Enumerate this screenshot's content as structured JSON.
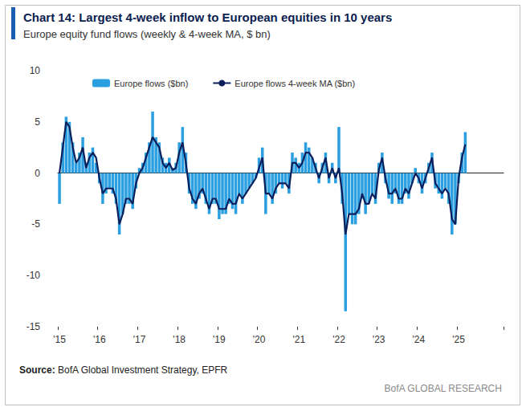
{
  "chart_data": {
    "type": "bar",
    "title": "Chart 14: Largest 4-week inflow to European equities in 10 years",
    "subtitle": "Europe equity fund flows (weekly & 4-week MA, $ bn)",
    "source": "Source: BofA Global Investment Strategy, EPFR",
    "credit": "BofA GLOBAL RESEARCH",
    "categories": [
      "'15",
      null,
      null,
      null,
      null,
      null,
      null,
      null,
      null,
      null,
      null,
      null,
      "'16",
      null,
      null,
      null,
      null,
      null,
      null,
      null,
      null,
      null,
      null,
      null,
      "'17",
      null,
      null,
      null,
      null,
      null,
      null,
      null,
      null,
      null,
      null,
      null,
      "'18",
      null,
      null,
      null,
      null,
      null,
      null,
      null,
      null,
      null,
      null,
      null,
      "'19",
      null,
      null,
      null,
      null,
      null,
      null,
      null,
      null,
      null,
      null,
      null,
      "'20",
      null,
      null,
      null,
      null,
      null,
      null,
      null,
      null,
      null,
      null,
      null,
      "'21",
      null,
      null,
      null,
      null,
      null,
      null,
      null,
      null,
      null,
      null,
      null,
      "'22",
      null,
      null,
      null,
      null,
      null,
      null,
      null,
      null,
      null,
      null,
      null,
      "'23",
      null,
      null,
      null,
      null,
      null,
      null,
      null,
      null,
      null,
      null,
      null,
      "'24",
      null,
      null,
      null,
      null,
      null,
      null,
      null,
      null,
      null,
      null,
      null,
      "'25",
      null,
      null,
      null,
      null,
      null,
      null,
      null,
      null,
      null,
      null,
      null,
      null,
      null
    ],
    "series": [
      {
        "name": "Europe flows ($bn)",
        "type": "bar",
        "color": "#2b9fe0",
        "values": [
          -3,
          3,
          5.5,
          5,
          3,
          1,
          2,
          3.5,
          1,
          2,
          2.5,
          1,
          -1,
          -3,
          -2,
          -1.5,
          -2,
          -3,
          -6,
          -4,
          -3,
          -3,
          -3.5,
          -1.5,
          0.5,
          1,
          2,
          3,
          6,
          3.5,
          3,
          1.5,
          1,
          1.5,
          0.5,
          1,
          3,
          4.5,
          2,
          -2,
          -3,
          -3.5,
          -2.5,
          -2,
          -3,
          -4,
          -3,
          -3,
          -4.5,
          -4,
          -4,
          -3,
          -3.5,
          -4,
          -2,
          -3,
          -2,
          -1.5,
          -1,
          -0.5,
          1.5,
          2.5,
          -4,
          -2,
          -3,
          -2,
          -1,
          -1.5,
          -1,
          -2,
          2,
          1.5,
          1,
          2,
          3,
          2.5,
          1.5,
          1,
          -1,
          1,
          2,
          -1,
          1,
          -1,
          4.5,
          -3,
          -13.5,
          -4,
          -5,
          -5,
          -4,
          -2.5,
          -4,
          -3,
          -2,
          -3,
          1,
          2,
          -1,
          -2.5,
          -3,
          -2,
          -3,
          -3,
          -2,
          -2.5,
          -1,
          0.5,
          -1,
          -2,
          -1,
          1,
          2,
          -1.5,
          -2,
          -2.5,
          -1.5,
          -3,
          -6,
          -5,
          -1,
          2,
          4,
          null,
          null,
          null,
          null,
          null,
          null,
          null,
          null,
          null,
          null,
          null
        ]
      },
      {
        "name": "Europe flows 4-week MA ($bn)",
        "type": "line",
        "color": "#0b1f5c",
        "values": [
          0,
          2.5,
          5,
          4.5,
          2.5,
          1,
          1.5,
          2.5,
          0.5,
          1.5,
          2,
          1.5,
          -0.5,
          -2,
          -1.5,
          -1.5,
          -1.5,
          -2.5,
          -5,
          -4,
          -2.5,
          -2.5,
          -3,
          -1,
          0,
          0.5,
          1.5,
          2.5,
          3.5,
          3,
          2.5,
          1,
          0.5,
          1,
          0.3,
          0.5,
          2,
          3,
          1,
          -1.5,
          -2.5,
          -3,
          -2,
          -1.5,
          -2.5,
          -3.5,
          -2.5,
          -2.5,
          -3.5,
          -3.5,
          -3.5,
          -2.5,
          -3,
          -3,
          -2,
          -2.5,
          -2,
          -1.5,
          -1,
          -0.5,
          0.5,
          1.5,
          -2,
          -2,
          -2.5,
          -1.5,
          -1,
          -1,
          -1,
          -1.5,
          1,
          1,
          0.5,
          1,
          2,
          2,
          1.5,
          0.5,
          -0.5,
          0.5,
          1.5,
          -0.5,
          0.5,
          -0.5,
          0.5,
          -2,
          -6,
          -4,
          -4,
          -4,
          -3.5,
          -2,
          -3,
          -3,
          -2,
          -2.5,
          0.3,
          1.5,
          -0.5,
          -2,
          -2,
          -1.5,
          -2.5,
          -2.5,
          -1.5,
          -2,
          -1,
          0,
          -0.5,
          -1.5,
          -0.5,
          0.5,
          1.5,
          -1,
          -1.5,
          -2,
          -1.5,
          -2,
          -4.5,
          -5,
          -0.5,
          1.5,
          2.8,
          null,
          null,
          null,
          null,
          null,
          null,
          null,
          null,
          null,
          null,
          null
        ]
      }
    ],
    "ylim": [
      -15,
      10
    ],
    "yticks": [
      -15,
      -10,
      -5,
      0,
      5,
      10
    ],
    "grid": false,
    "legend": "top"
  }
}
